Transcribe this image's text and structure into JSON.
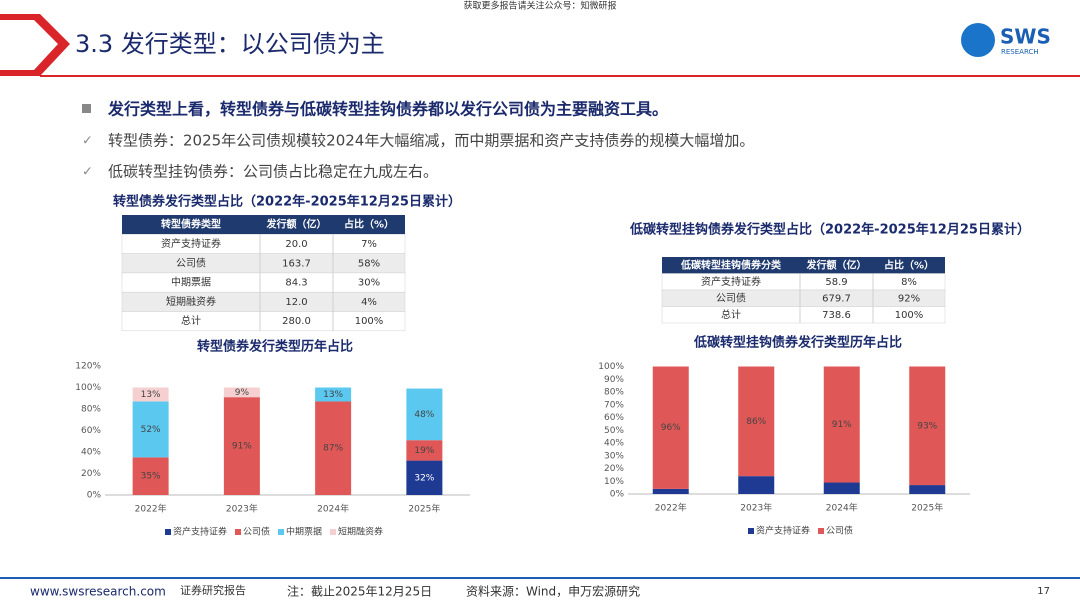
{
  "header": {
    "watermark": "获取更多报告请关注公众号：知微研报",
    "title": "3.3 发行类型：以公司债为主",
    "logo": "SWS",
    "logo_sub": "RESEARCH"
  },
  "bullets": [
    "发行类型上看，转型债券与低碳转型挂钩债券都以发行公司债为主要融资工具。",
    "转型债券：2025年公司债规模较2024年大幅缩减，而中期票据和资产支持债券的规模大幅增加。",
    "低碳转型挂钩债券：公司债占比稳定在九成左右。"
  ],
  "tables": [
    {
      "title": "转型债券发行类型占比（2022年-2025年12月25日累计）",
      "header": [
        "转型债券类型",
        "发行额（亿）",
        "占比（%）"
      ],
      "rows": [
        [
          "资产支持证券",
          "20.0",
          "7%"
        ],
        [
          "公司债",
          "163.7",
          "58%"
        ],
        [
          "中期票据",
          "84.3",
          "30%"
        ],
        [
          "短期融资券",
          "12.0",
          "4%"
        ],
        [
          "总计",
          "280.0",
          "100%"
        ]
      ]
    },
    {
      "title": "低碳转型挂钩债券发行类型占比（2022年-2025年12月25日累计）",
      "header": [
        "低碳转型挂钩债券分类",
        "发行额（亿）",
        "占比（%）"
      ],
      "rows": [
        [
          "资产支持证券",
          "58.9",
          "8%"
        ],
        [
          "公司债",
          "679.7",
          "92%"
        ],
        [
          "总计",
          "738.6",
          "100%"
        ]
      ]
    }
  ],
  "charts": [
    {
      "type": "stacked-bar",
      "title": "转型债券发行类型历年占比",
      "categories": [
        "2022年",
        "2023年",
        "2024年",
        "2025年"
      ],
      "series": [
        {
          "name": "资产支持证券",
          "color": "#1f3a93",
          "values": [
            0,
            0,
            0,
            32
          ],
          "value_labels": [
            null,
            null,
            null,
            "32%"
          ]
        },
        {
          "name": "公司债",
          "color": "#e05757",
          "values": [
            35,
            91,
            87,
            19
          ],
          "value_labels": [
            "35%",
            "91%",
            "87%",
            "19%"
          ]
        },
        {
          "name": "中期票据",
          "color": "#5bc8ef",
          "values": [
            52,
            0,
            13,
            48
          ],
          "value_labels": [
            "52%",
            null,
            "13%",
            "48%"
          ]
        },
        {
          "name": "短期融资券",
          "color": "#f6d0d0",
          "values": [
            13,
            9,
            0,
            0
          ],
          "value_labels": [
            "13%",
            "9%",
            null,
            null
          ]
        }
      ],
      "ylim": [
        0,
        120
      ],
      "yticks": [
        {
          "value": 0,
          "label": "0%"
        },
        {
          "value": 20,
          "label": "20%"
        },
        {
          "value": 40,
          "label": "40%"
        },
        {
          "value": 60,
          "label": "60%"
        },
        {
          "value": 80,
          "label": "80%"
        },
        {
          "value": 100,
          "label": "100%"
        },
        {
          "value": 120,
          "label": "120%"
        }
      ]
    },
    {
      "type": "stacked-bar",
      "title": "低碳转型挂钩债券发行类型历年占比",
      "categories": [
        "2022年",
        "2023年",
        "2024年",
        "2025年"
      ],
      "series": [
        {
          "name": "资产支持证券",
          "color": "#1f3a93",
          "values": [
            4,
            14,
            9,
            7
          ],
          "value_labels": [
            null,
            null,
            null,
            null
          ]
        },
        {
          "name": "公司债",
          "color": "#e05757",
          "values": [
            96,
            86,
            91,
            93
          ],
          "value_labels": [
            "96%",
            "86%",
            "91%",
            "93%"
          ]
        }
      ],
      "ylim": [
        0,
        100
      ],
      "yticks": [
        {
          "value": 0,
          "label": "0%"
        },
        {
          "value": 10,
          "label": "10%"
        },
        {
          "value": 20,
          "label": "20%"
        },
        {
          "value": 30,
          "label": "30%"
        },
        {
          "value": 40,
          "label": "40%"
        },
        {
          "value": 50,
          "label": "50%"
        },
        {
          "value": 60,
          "label": "60%"
        },
        {
          "value": 70,
          "label": "70%"
        },
        {
          "value": 80,
          "label": "80%"
        },
        {
          "value": 90,
          "label": "90%"
        },
        {
          "value": 100,
          "label": "100%"
        }
      ]
    }
  ],
  "footer": {
    "site": "www.swsresearch.com",
    "kind": "证券研究报告",
    "note": "注：截止2025年12月25日",
    "source": "资料来源：Wind，申万宏源研究",
    "page": "17"
  }
}
